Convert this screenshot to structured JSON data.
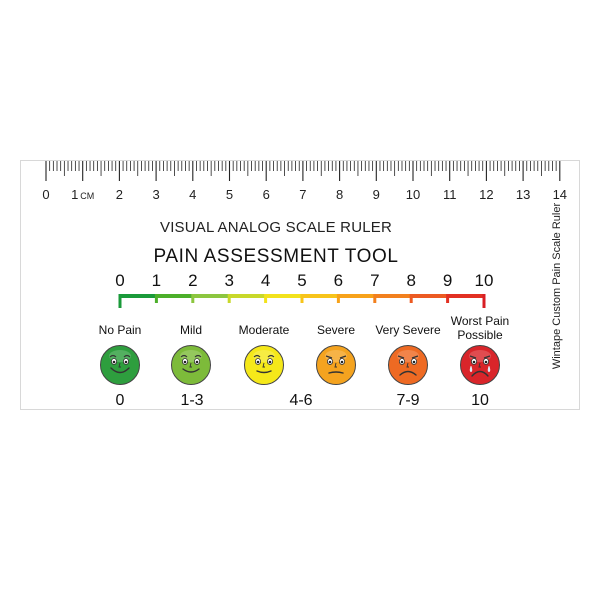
{
  "ruler": {
    "cm_labels": [
      "0",
      "1",
      "2",
      "3",
      "4",
      "5",
      "6",
      "7",
      "8",
      "9",
      "10",
      "11",
      "12",
      "13",
      "14"
    ],
    "unit_label": "CM",
    "subtitle": "VISUAL ANALOG SCALE RULER",
    "title": "PAIN ASSESSMENT TOOL",
    "side_text": "Wintape Custom Pain Scale Ruler"
  },
  "pain_scale": {
    "numbers": [
      "0",
      "1",
      "2",
      "3",
      "4",
      "5",
      "6",
      "7",
      "8",
      "9",
      "10"
    ],
    "bar_colors": [
      "#1a9a3a",
      "#4caf2a",
      "#8cc63f",
      "#c8d82a",
      "#f2e21c",
      "#f7c41a",
      "#f7a21a",
      "#f2801e",
      "#ec5a22",
      "#e23022",
      "#d81e24"
    ]
  },
  "faces": [
    {
      "label": "No Pain",
      "range": "0",
      "color": "#2e9e3e",
      "mood": "happy"
    },
    {
      "label": "Mild",
      "range": "1-3",
      "color": "#7dbb3a",
      "mood": "smile"
    },
    {
      "label": "Moderate",
      "range": "4-6",
      "color": "#f5e81a",
      "mood": "slight"
    },
    {
      "label": "Severe",
      "range": "",
      "color": "#f4a31f",
      "mood": "neutral"
    },
    {
      "label": "Very Severe",
      "range": "7-9",
      "color": "#ee6a23",
      "mood": "sad"
    },
    {
      "label": "Worst Pain Possible",
      "range": "10",
      "color": "#d9252a",
      "mood": "cry"
    }
  ]
}
